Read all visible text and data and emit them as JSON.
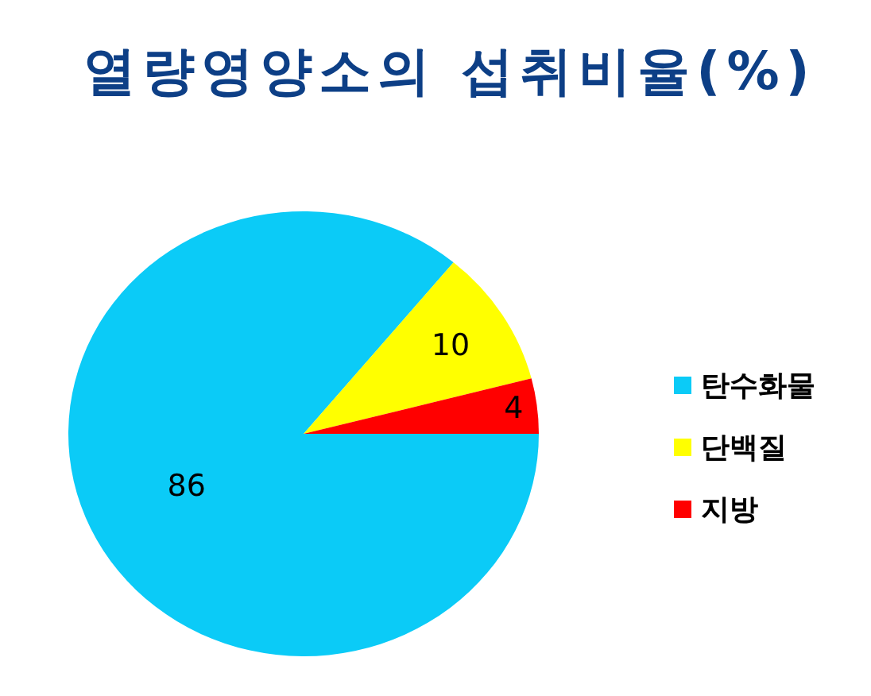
{
  "chart_data": {
    "type": "pie",
    "title": "열량영양소의 섭취비율(%)",
    "categories": [
      "탄수화물",
      "단백질",
      "지방"
    ],
    "values": [
      86,
      10,
      4
    ],
    "colors": [
      "#0bcbf7",
      "#ffff00",
      "#ff0000"
    ],
    "data_labels": true,
    "legend": "right"
  }
}
